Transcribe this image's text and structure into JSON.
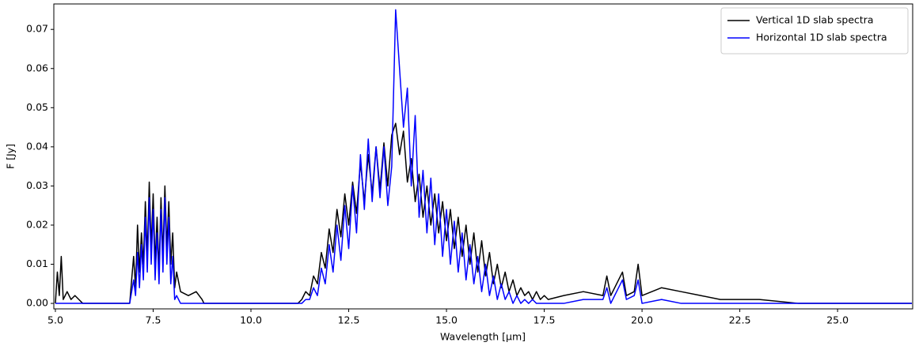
{
  "chart_data": {
    "type": "line",
    "xlabel": "Wavelength [μm]",
    "ylabel": "F [Jy]",
    "x": [
      5.0,
      5.05,
      5.1,
      5.15,
      5.2,
      5.3,
      5.4,
      5.5,
      5.6,
      5.7,
      6.9,
      7.0,
      7.05,
      7.1,
      7.15,
      7.2,
      7.25,
      7.3,
      7.35,
      7.4,
      7.45,
      7.5,
      7.55,
      7.6,
      7.65,
      7.7,
      7.75,
      7.8,
      7.85,
      7.9,
      7.95,
      8.0,
      8.05,
      8.1,
      8.2,
      8.4,
      8.6,
      8.75,
      8.8,
      11.0,
      11.2,
      11.3,
      11.4,
      11.5,
      11.6,
      11.7,
      11.8,
      11.9,
      12.0,
      12.1,
      12.2,
      12.3,
      12.4,
      12.5,
      12.6,
      12.7,
      12.8,
      12.9,
      13.0,
      13.1,
      13.2,
      13.3,
      13.4,
      13.5,
      13.6,
      13.7,
      13.8,
      13.9,
      14.0,
      14.1,
      14.2,
      14.3,
      14.4,
      14.5,
      14.6,
      14.7,
      14.8,
      14.9,
      15.0,
      15.1,
      15.2,
      15.3,
      15.4,
      15.5,
      15.6,
      15.7,
      15.8,
      15.9,
      16.0,
      16.1,
      16.2,
      16.3,
      16.4,
      16.5,
      16.6,
      16.7,
      16.8,
      16.9,
      17.0,
      17.1,
      17.2,
      17.3,
      17.4,
      17.5,
      17.6,
      18.0,
      18.5,
      19.0,
      19.1,
      19.2,
      19.5,
      19.6,
      19.8,
      19.9,
      20.0,
      20.5,
      21.0,
      21.5,
      22.0,
      22.5,
      23.0,
      24.0,
      26.9
    ],
    "series": [
      {
        "name": "Vertical 1D slab spectra",
        "color": "#000000",
        "values": [
          0,
          0.008,
          0.002,
          0.012,
          0.001,
          0.003,
          0.001,
          0.002,
          0.001,
          0,
          0,
          0.012,
          0.004,
          0.02,
          0.008,
          0.018,
          0.01,
          0.026,
          0.012,
          0.031,
          0.014,
          0.028,
          0.01,
          0.022,
          0.008,
          0.027,
          0.012,
          0.03,
          0.014,
          0.026,
          0.01,
          0.018,
          0.004,
          0.008,
          0.003,
          0.002,
          0.003,
          0.001,
          0,
          0,
          0,
          0.001,
          0.003,
          0.002,
          0.007,
          0.005,
          0.013,
          0.009,
          0.019,
          0.013,
          0.024,
          0.017,
          0.028,
          0.02,
          0.031,
          0.023,
          0.036,
          0.026,
          0.038,
          0.028,
          0.04,
          0.029,
          0.041,
          0.03,
          0.043,
          0.046,
          0.038,
          0.044,
          0.031,
          0.037,
          0.026,
          0.033,
          0.022,
          0.03,
          0.02,
          0.028,
          0.018,
          0.026,
          0.016,
          0.024,
          0.014,
          0.022,
          0.012,
          0.02,
          0.01,
          0.018,
          0.008,
          0.016,
          0.007,
          0.013,
          0.005,
          0.01,
          0.004,
          0.008,
          0.003,
          0.006,
          0.002,
          0.004,
          0.002,
          0.003,
          0.001,
          0.003,
          0.001,
          0.002,
          0.001,
          0.002,
          0.003,
          0.002,
          0.007,
          0.002,
          0.008,
          0.002,
          0.003,
          0.01,
          0.002,
          0.004,
          0.003,
          0.002,
          0.001,
          0.001,
          0.001,
          0,
          0
        ]
      },
      {
        "name": "Horizontal 1D slab spectra",
        "color": "#0000ff",
        "values": [
          0,
          0,
          0,
          0,
          0,
          0,
          0,
          0,
          0,
          0,
          0,
          0.006,
          0.002,
          0.013,
          0.004,
          0.015,
          0.006,
          0.022,
          0.008,
          0.027,
          0.01,
          0.024,
          0.006,
          0.018,
          0.005,
          0.024,
          0.008,
          0.027,
          0.01,
          0.022,
          0.005,
          0.012,
          0.001,
          0.002,
          0,
          0,
          0,
          0,
          0,
          0,
          0,
          0,
          0.001,
          0.001,
          0.004,
          0.002,
          0.009,
          0.005,
          0.015,
          0.008,
          0.02,
          0.011,
          0.025,
          0.014,
          0.03,
          0.018,
          0.038,
          0.024,
          0.042,
          0.026,
          0.04,
          0.027,
          0.04,
          0.025,
          0.035,
          0.075,
          0.06,
          0.045,
          0.055,
          0.03,
          0.048,
          0.022,
          0.034,
          0.018,
          0.032,
          0.015,
          0.028,
          0.012,
          0.024,
          0.01,
          0.021,
          0.008,
          0.018,
          0.006,
          0.015,
          0.005,
          0.012,
          0.003,
          0.01,
          0.002,
          0.007,
          0.001,
          0.005,
          0.001,
          0.003,
          0,
          0.002,
          0,
          0.001,
          0,
          0.001,
          0,
          0,
          0,
          0,
          0,
          0.001,
          0.001,
          0.004,
          0,
          0.006,
          0.001,
          0.002,
          0.006,
          0,
          0.001,
          0,
          0,
          0,
          0,
          0,
          0,
          0
        ]
      }
    ],
    "xlim": [
      4.96,
      26.92
    ],
    "ylim": [
      -0.0014,
      0.0765
    ],
    "xticks": [
      {
        "value": 5,
        "label": "5.0"
      },
      7.5,
      {
        "value": 10,
        "label": "10.0"
      },
      12.5,
      {
        "value": 15,
        "label": "15.0"
      },
      17.5,
      {
        "value": 20,
        "label": "20.0"
      },
      22.5,
      {
        "value": 25,
        "label": "25.0"
      }
    ],
    "yticks": [
      {
        "value": 0,
        "label": "0.00"
      },
      0.01,
      0.02,
      0.03,
      0.04,
      0.05,
      0.06,
      0.07
    ],
    "legend": "upper right"
  }
}
